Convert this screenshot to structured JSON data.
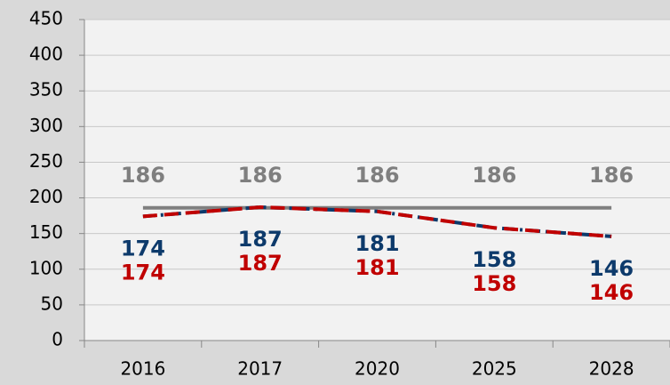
{
  "chart_data": {
    "type": "line",
    "categories": [
      "2016",
      "2017",
      "2020",
      "2025",
      "2028"
    ],
    "series": [
      {
        "color": "#7f7f7f",
        "dash": "solid",
        "values": [
          186,
          186,
          186,
          186,
          186
        ]
      },
      {
        "color": "#0d3a6b",
        "dash": "dashdot",
        "values": [
          174,
          187,
          181,
          158,
          146
        ]
      },
      {
        "color": "#c00000",
        "dash": "dashed",
        "values": [
          174,
          187,
          181,
          158,
          146
        ]
      }
    ],
    "ylim": [
      0,
      450
    ],
    "yticks": [
      0,
      50,
      100,
      150,
      200,
      250,
      300,
      350,
      400,
      450
    ],
    "grid": true
  }
}
